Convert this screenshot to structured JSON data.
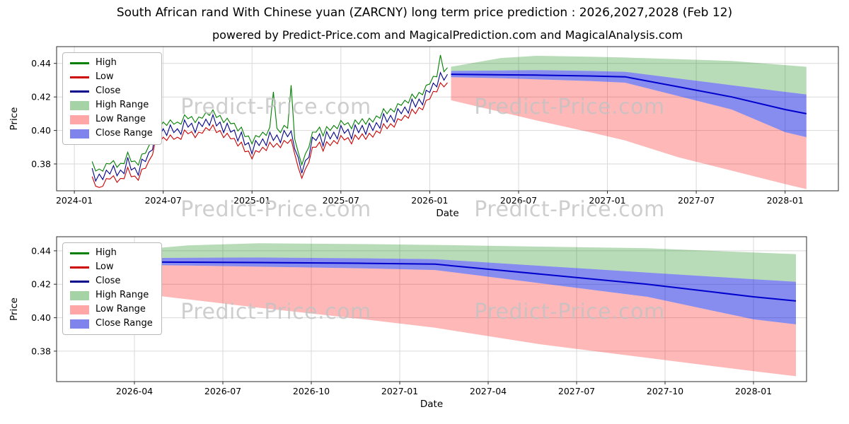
{
  "page": {
    "title": "South African rand With Chinese yuan (ZARCNY) long term price prediction : 2026,2027,2028 (Feb 12)",
    "subtitle": "powered by Predict-Price.com and MagicalPrediction.com and MagicalAnalysis.com",
    "watermark": "Predict-Price.com"
  },
  "colors": {
    "high_line": "#008000",
    "low_line": "#cc0000",
    "close_line": "#00008b",
    "forecast_close_line": "#0000cd",
    "high_band": "rgba(0,128,0,0.28)",
    "low_band": "rgba(255,0,0,0.28)",
    "close_band": "rgba(0,10,220,0.47)",
    "grid": "#d9d9d9",
    "spine": "#2b2b2b",
    "watermark": "#c3c3c3"
  },
  "legend": {
    "position": "upper left",
    "items": [
      {
        "label": "High",
        "swatch": "line",
        "color": "#008000"
      },
      {
        "label": "Low",
        "swatch": "line",
        "color": "#cc0000"
      },
      {
        "label": "Close",
        "swatch": "line",
        "color": "#00008b"
      },
      {
        "label": "High Range",
        "swatch": "patch",
        "color": "rgba(0,128,0,0.35)"
      },
      {
        "label": "Low Range",
        "swatch": "patch",
        "color": "rgba(255,0,0,0.35)"
      },
      {
        "label": "Close Range",
        "swatch": "patch",
        "color": "rgba(0,10,220,0.5)"
      }
    ]
  },
  "chart_data": [
    {
      "name": "history-and-forecast-chart",
      "type": "line",
      "xlabel": "Date",
      "ylabel": "Price",
      "xlim": [
        2023.9,
        2028.3
      ],
      "ylim": [
        0.364,
        0.45
      ],
      "grid": true,
      "xticks": {
        "values": [
          2024.0,
          2024.5,
          2025.0,
          2025.5,
          2026.0,
          2026.5,
          2027.0,
          2027.5,
          2028.0
        ],
        "labels": [
          "2024-01",
          "2024-07",
          "2025-01",
          "2025-07",
          "2026-01",
          "2026-07",
          "2027-01",
          "2027-07",
          "2028-01"
        ]
      },
      "yticks": {
        "values": [
          0.38,
          0.4,
          0.42,
          0.44
        ],
        "labels": [
          "0.38",
          "0.40",
          "0.42",
          "0.44"
        ]
      },
      "series": {
        "x_start": 2024.1,
        "x_step": 0.02,
        "high": [
          0.3815,
          0.3758,
          0.377,
          0.3757,
          0.3803,
          0.38,
          0.382,
          0.378,
          0.3804,
          0.3802,
          0.387,
          0.3814,
          0.3818,
          0.3793,
          0.3859,
          0.3864,
          0.391,
          0.3945,
          0.405,
          0.402,
          0.405,
          0.403,
          0.4063,
          0.4037,
          0.405,
          0.4037,
          0.4093,
          0.407,
          0.4083,
          0.4047,
          0.408,
          0.4073,
          0.4107,
          0.409,
          0.4123,
          0.4077,
          0.409,
          0.4047,
          0.4073,
          0.404,
          0.4043,
          0.3997,
          0.402,
          0.3963,
          0.3967,
          0.392,
          0.397,
          0.396,
          0.399,
          0.397,
          0.402,
          0.423,
          0.4013,
          0.3987,
          0.403,
          0.4013,
          0.427,
          0.395,
          0.387,
          0.3795,
          0.386,
          0.39,
          0.399,
          0.399,
          0.402,
          0.3967,
          0.4023,
          0.4,
          0.403,
          0.401,
          0.406,
          0.4033,
          0.4047,
          0.401,
          0.4063,
          0.4037,
          0.407,
          0.4037,
          0.4073,
          0.405,
          0.4087,
          0.4073,
          0.413,
          0.41,
          0.413,
          0.411,
          0.416,
          0.415,
          0.418,
          0.4163,
          0.4217,
          0.419,
          0.4227,
          0.4213,
          0.427,
          0.4277,
          0.4323,
          0.432,
          0.445,
          0.435,
          0.4375
        ],
        "low": [
          0.3725,
          0.3668,
          0.366,
          0.3667,
          0.3713,
          0.371,
          0.373,
          0.369,
          0.3714,
          0.3712,
          0.378,
          0.3724,
          0.3728,
          0.3703,
          0.3769,
          0.3774,
          0.382,
          0.3855,
          0.396,
          0.393,
          0.396,
          0.394,
          0.3973,
          0.3947,
          0.396,
          0.3947,
          0.4003,
          0.398,
          0.3993,
          0.3957,
          0.399,
          0.3983,
          0.4017,
          0.4,
          0.4033,
          0.3987,
          0.4,
          0.3957,
          0.3983,
          0.395,
          0.3953,
          0.3907,
          0.393,
          0.3873,
          0.3877,
          0.383,
          0.388,
          0.387,
          0.39,
          0.388,
          0.393,
          0.39,
          0.3923,
          0.3897,
          0.394,
          0.3923,
          0.3947,
          0.386,
          0.378,
          0.3715,
          0.377,
          0.381,
          0.39,
          0.39,
          0.393,
          0.3877,
          0.3933,
          0.391,
          0.394,
          0.392,
          0.397,
          0.3943,
          0.3957,
          0.392,
          0.3973,
          0.3947,
          0.398,
          0.3947,
          0.3983,
          0.396,
          0.3997,
          0.3983,
          0.404,
          0.401,
          0.404,
          0.402,
          0.407,
          0.406,
          0.409,
          0.4073,
          0.4127,
          0.41,
          0.4137,
          0.4123,
          0.418,
          0.4187,
          0.4233,
          0.423,
          0.4285,
          0.426,
          0.4285
        ],
        "close": [
          0.3775,
          0.3698,
          0.374,
          0.3707,
          0.3763,
          0.374,
          0.379,
          0.373,
          0.3764,
          0.3742,
          0.384,
          0.3764,
          0.3778,
          0.3733,
          0.3829,
          0.3814,
          0.387,
          0.3885,
          0.402,
          0.397,
          0.401,
          0.397,
          0.4033,
          0.3987,
          0.401,
          0.3977,
          0.4063,
          0.402,
          0.4043,
          0.3987,
          0.405,
          0.4023,
          0.4067,
          0.403,
          0.4093,
          0.4027,
          0.405,
          0.3987,
          0.4043,
          0.399,
          0.4003,
          0.3937,
          0.399,
          0.3913,
          0.3927,
          0.386,
          0.394,
          0.391,
          0.395,
          0.391,
          0.399,
          0.394,
          0.3973,
          0.3927,
          0.4,
          0.3963,
          0.3997,
          0.389,
          0.384,
          0.3745,
          0.382,
          0.384,
          0.396,
          0.394,
          0.398,
          0.3907,
          0.3993,
          0.395,
          0.399,
          0.395,
          0.403,
          0.3983,
          0.4007,
          0.395,
          0.4033,
          0.3987,
          0.403,
          0.3977,
          0.4043,
          0.4,
          0.4047,
          0.4013,
          0.41,
          0.405,
          0.409,
          0.405,
          0.413,
          0.41,
          0.414,
          0.4103,
          0.4187,
          0.414,
          0.4187,
          0.4153,
          0.424,
          0.4227,
          0.4283,
          0.426,
          0.4345,
          0.43,
          0.4335
        ]
      },
      "forecast": {
        "x": [
          2026.12,
          2026.4,
          2026.6,
          2026.9,
          2027.1,
          2027.4,
          2027.7,
          2028.0,
          2028.12
        ],
        "close": [
          0.4335,
          0.4332,
          0.433,
          0.4325,
          0.432,
          0.426,
          0.42,
          0.4125,
          0.41
        ],
        "close_band_upper": [
          0.4355,
          0.4358,
          0.436,
          0.4355,
          0.435,
          0.431,
          0.427,
          0.423,
          0.4215
        ],
        "close_band_lower": [
          0.4318,
          0.4312,
          0.4305,
          0.4295,
          0.4285,
          0.4205,
          0.4125,
          0.399,
          0.396
        ],
        "high_band_upper": [
          0.438,
          0.4432,
          0.4445,
          0.444,
          0.4435,
          0.4425,
          0.4415,
          0.439,
          0.438
        ],
        "low_band_lower": [
          0.418,
          0.411,
          0.406,
          0.399,
          0.394,
          0.384,
          0.376,
          0.368,
          0.365
        ]
      }
    },
    {
      "name": "forecast-detail-chart",
      "type": "line",
      "xlabel": "Date",
      "ylabel": "Price",
      "xlim": [
        2026.03,
        2028.15
      ],
      "ylim": [
        0.3618,
        0.4484
      ],
      "grid": true,
      "xticks": {
        "values": [
          2026.25,
          2026.5,
          2026.75,
          2027.0,
          2027.25,
          2027.5,
          2027.75,
          2028.0
        ],
        "labels": [
          "2026-04",
          "2026-07",
          "2026-10",
          "2027-01",
          "2027-04",
          "2027-07",
          "2027-10",
          "2028-01"
        ]
      },
      "yticks": {
        "values": [
          0.38,
          0.4,
          0.42,
          0.44
        ],
        "labels": [
          "0.38",
          "0.40",
          "0.42",
          "0.44"
        ]
      },
      "forecast_shared_with_top_chart": true
    }
  ]
}
